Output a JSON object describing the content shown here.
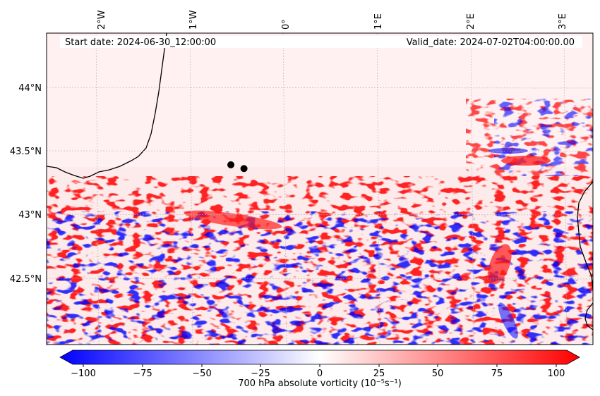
{
  "map": {
    "start_label": "Start date: 2024-06-30_12:00:00",
    "valid_label": "Valid_date: 2024-07-02T04:00:00.00",
    "lon_ticks": [
      "2°W",
      "1°W",
      "0°",
      "1°E",
      "2°E",
      "3°E"
    ],
    "lat_ticks": [
      "44°N",
      "43.5°N",
      "43°N",
      "42.5°N"
    ],
    "markers": [
      {
        "lon": -0.58,
        "lat": 43.39
      },
      {
        "lon": -0.44,
        "lat": 43.36
      }
    ]
  },
  "colorbar": {
    "label": "700 hPa absolute vorticity (10⁻⁵s⁻¹)",
    "ticks": [
      "−100",
      "−75",
      "−50",
      "−25",
      "0",
      "25",
      "50",
      "75",
      "100"
    ],
    "min": -100,
    "max": 100,
    "colors": {
      "negative": "#0000ff",
      "zero": "#ffffff",
      "positive": "#ff0000"
    }
  }
}
